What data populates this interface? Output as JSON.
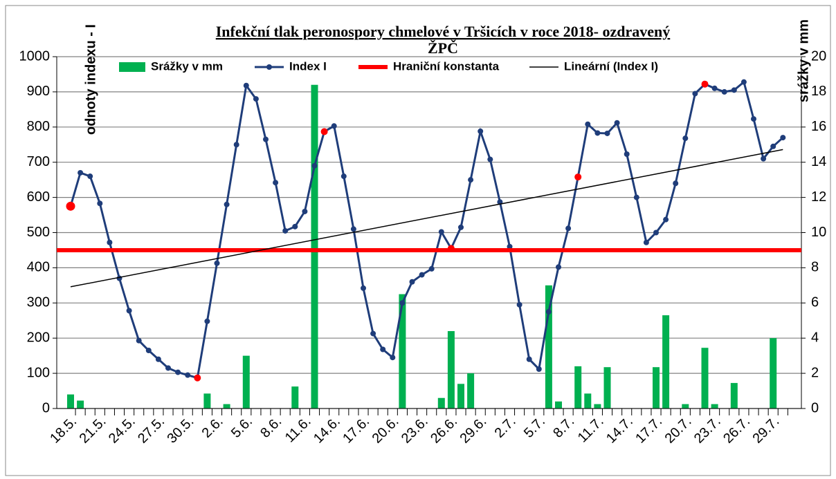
{
  "chart_data": {
    "type": "bar_line",
    "title": "Infekční tlak peronospory chmelové  v Tršicích v roce 2018- ozdravený",
    "subtitle": "ŽPČ",
    "y_label": "odnoty indexu - I",
    "y2_label": "srážky v mm",
    "categories": [
      "18.5.",
      null,
      null,
      "21.5.",
      null,
      null,
      "24.5.",
      null,
      null,
      "27.5.",
      null,
      null,
      "30.5.",
      null,
      null,
      "2.6.",
      null,
      null,
      "5.6.",
      null,
      null,
      "8.6.",
      null,
      null,
      "11.6.",
      null,
      null,
      "14.6.",
      null,
      null,
      "17.6.",
      null,
      null,
      "20.6.",
      null,
      null,
      "23.6.",
      null,
      null,
      "26.6.",
      null,
      null,
      "29.6.",
      null,
      null,
      "2.7.",
      null,
      null,
      "5.7.",
      null,
      null,
      "8.7.",
      null,
      null,
      "11.7.",
      null,
      null,
      "14.7.",
      null,
      null,
      "17.7.",
      null,
      null,
      "20.7.",
      null,
      null,
      "23.7.",
      null,
      null,
      "26.7.",
      null,
      null,
      "29.7.",
      null
    ],
    "series": [
      {
        "name": "Srážky v mm",
        "kind": "bar",
        "axis": "y2",
        "color": "#00b050",
        "values": [
          0.8,
          0.45,
          null,
          null,
          null,
          null,
          null,
          null,
          null,
          null,
          null,
          null,
          null,
          null,
          0.85,
          null,
          0.25,
          null,
          3.0,
          null,
          null,
          null,
          null,
          1.25,
          null,
          18.4,
          null,
          null,
          null,
          null,
          null,
          null,
          null,
          null,
          6.5,
          null,
          null,
          null,
          0.6,
          4.4,
          1.4,
          2.0,
          null,
          null,
          null,
          null,
          null,
          null,
          null,
          7.0,
          0.4,
          null,
          2.4,
          0.85,
          0.25,
          2.35,
          null,
          null,
          null,
          null,
          2.35,
          5.3,
          null,
          0.25,
          null,
          3.45,
          0.25,
          null,
          1.45,
          null,
          null,
          null,
          4.0,
          null
        ]
      },
      {
        "name": "Index I",
        "kind": "line",
        "color": "#1f3d7a",
        "values": [
          575,
          670,
          660,
          583,
          472,
          370,
          278,
          193,
          165,
          140,
          115,
          103,
          95,
          87,
          248,
          413,
          580,
          750,
          918,
          880,
          765,
          642,
          505,
          517,
          560,
          690,
          787,
          803,
          660,
          510,
          342,
          213,
          168,
          145,
          300,
          360,
          380,
          397,
          502,
          455,
          515,
          650,
          788,
          708,
          587,
          460,
          295,
          140,
          112,
          275,
          402,
          512,
          658,
          808,
          783,
          782,
          812,
          723,
          600,
          472,
          500,
          537,
          640,
          768,
          895,
          922,
          910,
          900,
          905,
          928,
          823,
          710,
          745,
          770
        ],
        "highlight_color": "#ff0000",
        "highlight_indices": [
          0,
          13,
          26,
          39,
          52,
          65
        ]
      },
      {
        "name": "Hraniční konstanta",
        "kind": "constant",
        "color": "#ff0000",
        "value": 450
      },
      {
        "name": "Lineární (Index I)",
        "kind": "trend",
        "color": "#000000",
        "trend_of": 1
      }
    ],
    "ylim": [
      0,
      1000
    ],
    "yticks": [
      0,
      100,
      200,
      300,
      400,
      500,
      600,
      700,
      800,
      900,
      1000
    ],
    "y2lim": [
      0,
      20
    ],
    "y2ticks": [
      0,
      2,
      4,
      6,
      8,
      10,
      12,
      14,
      16,
      18,
      20
    ],
    "grid": true
  }
}
